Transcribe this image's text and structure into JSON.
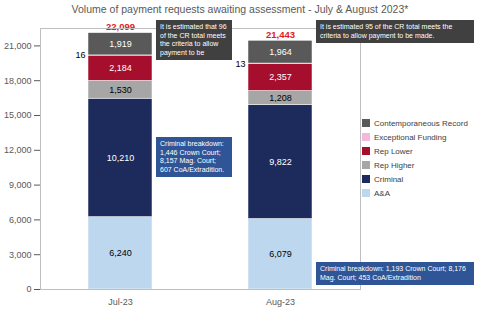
{
  "chart_data": {
    "type": "bar",
    "title": "Volume of payment requests awaiting assessment - July & August 2023*",
    "categories": [
      "Jul-23",
      "Aug-23"
    ],
    "stacked": true,
    "data_labels": true,
    "grid": false,
    "legend": "right",
    "ylim": [
      0,
      22500
    ],
    "yticks": [
      0,
      {
        "value": 3000,
        "label": "3,000"
      },
      {
        "value": 6000,
        "label": "6,000"
      },
      {
        "value": 9000,
        "label": "9,000"
      },
      {
        "value": 12000,
        "label": "12,000"
      },
      {
        "value": 15000,
        "label": "15,000"
      },
      {
        "value": 18000,
        "label": "18,000"
      },
      {
        "value": 21000,
        "label": "21,000"
      }
    ],
    "series": [
      {
        "name": "A&A",
        "color": "#bdd7ee",
        "values": [
          6240,
          6079
        ],
        "value_labels": [
          "6,240",
          "6,079"
        ]
      },
      {
        "name": "Criminal",
        "color": "#1c2a5c",
        "values": [
          10210,
          9822
        ],
        "value_labels": [
          "10,210",
          "9,822"
        ]
      },
      {
        "name": "Rep Higher",
        "color": "#a6a6a6",
        "values": [
          1530,
          1208
        ],
        "value_labels": [
          "1,530",
          "1,208"
        ]
      },
      {
        "name": "Rep Lower",
        "color": "#a50f2d",
        "values": [
          2184,
          2357
        ],
        "value_labels": [
          "2,184",
          "2,357"
        ]
      },
      {
        "name": "Exceptional Funding",
        "color": "#f4b8d8",
        "values": [
          16,
          13
        ]
      },
      {
        "name": "Contemporaneous Record",
        "color": "#595959",
        "values": [
          1919,
          1964
        ],
        "value_labels": [
          "1,919",
          "1,964"
        ]
      }
    ],
    "totals": {
      "values": [
        22099,
        21443
      ],
      "value_labels": [
        "22,099",
        "21,443"
      ],
      "color": "#e0201e"
    },
    "annotations": [
      {
        "text": "It is estimated that 96 of the CR total meets the criteria to allow payment to be",
        "category": "Jul-23",
        "series": "Contemporaneous Record",
        "color": "#404040"
      },
      {
        "text": "It is estimated 95 of the CR total meets the criteria to allow payment to be made.",
        "category": "Aug-23",
        "series": "Contemporaneous Record",
        "color": "#404040"
      },
      {
        "text": "Criminal breakdown: 1,446 Crown Court; 8,157 Mag. Court; 607 CoA/Extradition.",
        "category": "Jul-23",
        "series": "Criminal",
        "color": "#2f5597"
      },
      {
        "text": "Criminal breakdown: 1,193 Crown Court; 8,176 Mag. Court; 453 CoA/Extradition",
        "category": "Aug-23",
        "series": "Criminal",
        "color": "#2f5597"
      }
    ]
  }
}
